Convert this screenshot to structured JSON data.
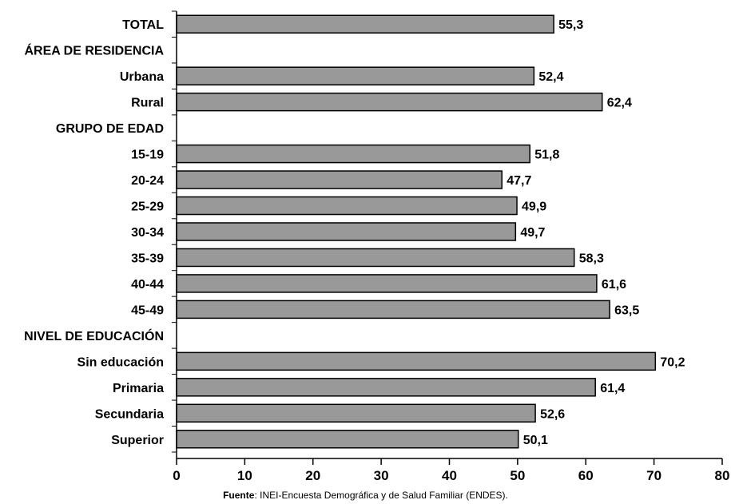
{
  "chart_data": {
    "type": "bar",
    "orientation": "horizontal",
    "title": "",
    "xlabel": "",
    "ylabel": "",
    "xlim": [
      0,
      80
    ],
    "x_ticks": [
      "0",
      "10",
      "20",
      "30",
      "40",
      "50",
      "60",
      "70",
      "80"
    ],
    "grid": false,
    "bar_color": "#999999",
    "bar_border_color": "#000000",
    "rows": [
      {
        "label": "TOTAL",
        "value": 55.3,
        "display": "55,3"
      },
      {
        "label": "ÁREA DE RESIDENCIA",
        "value": null,
        "display": ""
      },
      {
        "label": "Urbana",
        "value": 52.4,
        "display": "52,4"
      },
      {
        "label": "Rural",
        "value": 62.4,
        "display": "62,4"
      },
      {
        "label": "GRUPO DE EDAD",
        "value": null,
        "display": ""
      },
      {
        "label": "15-19",
        "value": 51.8,
        "display": "51,8"
      },
      {
        "label": "20-24",
        "value": 47.7,
        "display": "47,7"
      },
      {
        "label": "25-29",
        "value": 49.9,
        "display": "49,9"
      },
      {
        "label": "30-34",
        "value": 49.7,
        "display": "49,7"
      },
      {
        "label": "35-39",
        "value": 58.3,
        "display": "58,3"
      },
      {
        "label": "40-44",
        "value": 61.6,
        "display": "61,6"
      },
      {
        "label": "45-49",
        "value": 63.5,
        "display": "63,5"
      },
      {
        "label": "NIVEL DE EDUCACIÓN",
        "value": null,
        "display": ""
      },
      {
        "label": "Sin educación",
        "value": 70.2,
        "display": "70,2"
      },
      {
        "label": "Primaria",
        "value": 61.4,
        "display": "61,4"
      },
      {
        "label": "Secundaria",
        "value": 52.6,
        "display": "52,6"
      },
      {
        "label": "Superior",
        "value": 50.1,
        "display": "50,1"
      }
    ]
  },
  "source": {
    "prefix": "Fuente",
    "text": ": INEI-Encuesta Demográfica y de Salud Familiar (ENDES)."
  }
}
